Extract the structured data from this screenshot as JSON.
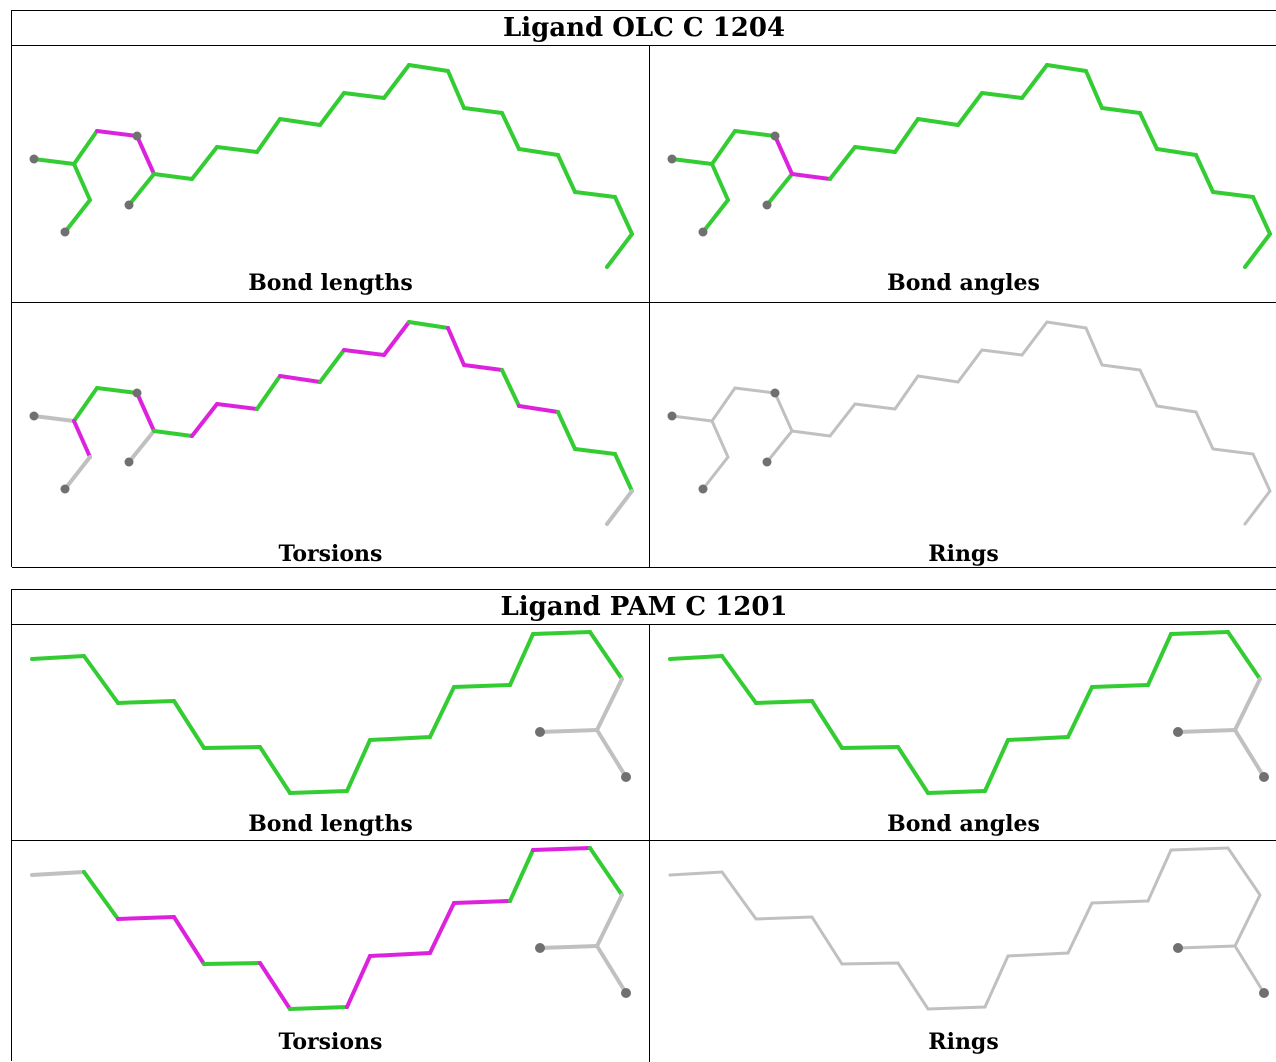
{
  "tables": [
    {
      "title": "Ligand OLC C 1204",
      "captions": [
        "Bond lengths",
        "Bond angles",
        "Torsions",
        "Rings"
      ]
    },
    {
      "title": "Ligand PAM C 1201",
      "captions": [
        "Bond lengths",
        "Bond angles",
        "Torsions",
        "Rings"
      ]
    }
  ],
  "colors": {
    "ok": "#33cc33",
    "outlier": "#dd22dd",
    "not_assessed": "#c0c0c0",
    "atom": "#707070"
  }
}
